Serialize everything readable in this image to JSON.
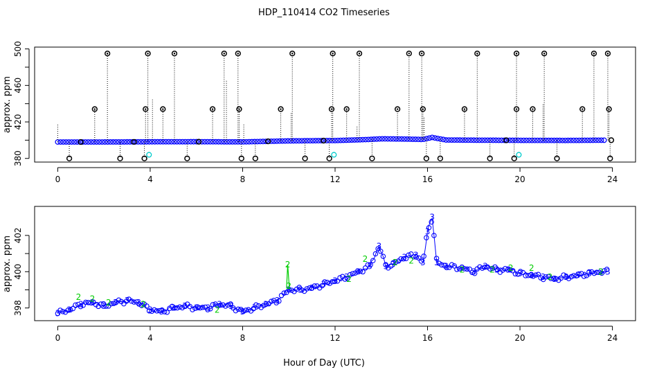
{
  "title": "HDP_110414  CO2 Timeseries",
  "xlabel": "Hour of Day (UTC)",
  "colors": {
    "axis": "#000000",
    "series_main": "#0000ff",
    "series_alt": "#00cc00",
    "spike": "#000000",
    "flag": "#00cccc"
  },
  "chart_data": [
    {
      "type": "scatter",
      "title": "HDP_110414  CO2 Timeseries",
      "xlabel": "",
      "ylabel": "approx. ppm",
      "xlim": [
        -1,
        25
      ],
      "ylim": [
        376,
        502
      ],
      "xticks": [
        0,
        4,
        8,
        12,
        16,
        20,
        24
      ],
      "yticks": [
        380,
        420,
        460,
        500
      ],
      "baseline": [
        [
          0,
          398
        ],
        [
          2,
          398
        ],
        [
          4,
          398.2
        ],
        [
          6,
          398.3
        ],
        [
          8,
          398.1
        ],
        [
          10,
          399.2
        ],
        [
          12,
          399.6
        ],
        [
          13.5,
          400.8
        ],
        [
          14,
          401.5
        ],
        [
          15,
          401.2
        ],
        [
          15.8,
          400.8
        ],
        [
          16.2,
          403
        ],
        [
          16.8,
          400.2
        ],
        [
          18,
          400
        ],
        [
          20,
          399.8
        ],
        [
          22,
          399.7
        ],
        [
          23.7,
          400
        ]
      ],
      "spikes_high": [
        2.15,
        3.9,
        5.05,
        7.2,
        7.8,
        10.15,
        11.9,
        13.05,
        15.2,
        15.75,
        18.15,
        19.85,
        21.05,
        23.2,
        23.8
      ],
      "spikes_mid": [
        1.6,
        3.8,
        4.55,
        6.7,
        7.85,
        9.65,
        11.85,
        12.5,
        14.7,
        15.8,
        17.6,
        19.85,
        20.55,
        22.7,
        23.85
      ],
      "spikes_low": [
        0.5,
        2.7,
        3.75,
        5.6,
        7.95,
        8.55,
        10.7,
        11.75,
        13.6,
        15.95,
        16.55,
        18.7,
        19.75,
        21.6,
        23.9
      ],
      "flags_cyan": [
        3.95,
        11.95,
        19.95
      ],
      "flag_level": 384
    },
    {
      "type": "line",
      "xlabel": "Hour of Day (UTC)",
      "ylabel": "approx. ppm",
      "xlim": [
        -1,
        25
      ],
      "ylim": [
        397.3,
        403.6
      ],
      "xticks": [
        0,
        4,
        8,
        12,
        16,
        20,
        24
      ],
      "yticks": [
        398,
        400,
        402
      ],
      "legend": "none",
      "series": [
        {
          "marker": "3",
          "x": [
            0,
            0.5,
            1,
            1.5,
            2,
            2.5,
            3,
            3.5,
            4,
            4.5,
            5,
            5.5,
            6,
            6.5,
            7,
            7.5,
            8,
            8.5,
            9,
            9.5,
            10,
            10.5,
            11,
            11.5,
            12,
            12.5,
            13,
            13.5,
            13.9,
            14.2,
            14.5,
            15,
            15.5,
            15.8,
            16,
            16.2,
            16.4,
            16.8,
            17.5,
            18,
            18.5,
            19,
            19.5,
            20,
            20.5,
            21,
            21.5,
            22,
            22.5,
            23,
            23.5,
            23.8
          ],
          "y": [
            397.7,
            397.9,
            398.2,
            398.3,
            398.1,
            398.3,
            398.4,
            398.3,
            397.9,
            397.8,
            398,
            398.1,
            398,
            398,
            398.2,
            398.1,
            397.8,
            398,
            398.2,
            398.4,
            399,
            399,
            399.1,
            399.3,
            399.5,
            399.7,
            400,
            400.3,
            401.4,
            400.3,
            400.4,
            400.8,
            400.9,
            400.5,
            402.2,
            403,
            400.5,
            400.3,
            400.2,
            400,
            400.3,
            400.1,
            400.1,
            399.9,
            399.8,
            399.7,
            399.6,
            399.7,
            399.8,
            399.9,
            400,
            400
          ]
        },
        {
          "marker": "2",
          "x": [
            0.9,
            1.5,
            2.2,
            3.7,
            6.9,
            9.95,
            10.0,
            12.6,
            13.3,
            14.6,
            15.3,
            17.5,
            18.8,
            19.6,
            20.5,
            21.3,
            23.5
          ],
          "y": [
            398.6,
            398.5,
            398.3,
            398.2,
            397.9,
            400.4,
            399.2,
            399.6,
            400.7,
            400.5,
            400.6,
            400.1,
            400.1,
            400.2,
            400.2,
            399.7,
            400
          ]
        }
      ]
    }
  ]
}
